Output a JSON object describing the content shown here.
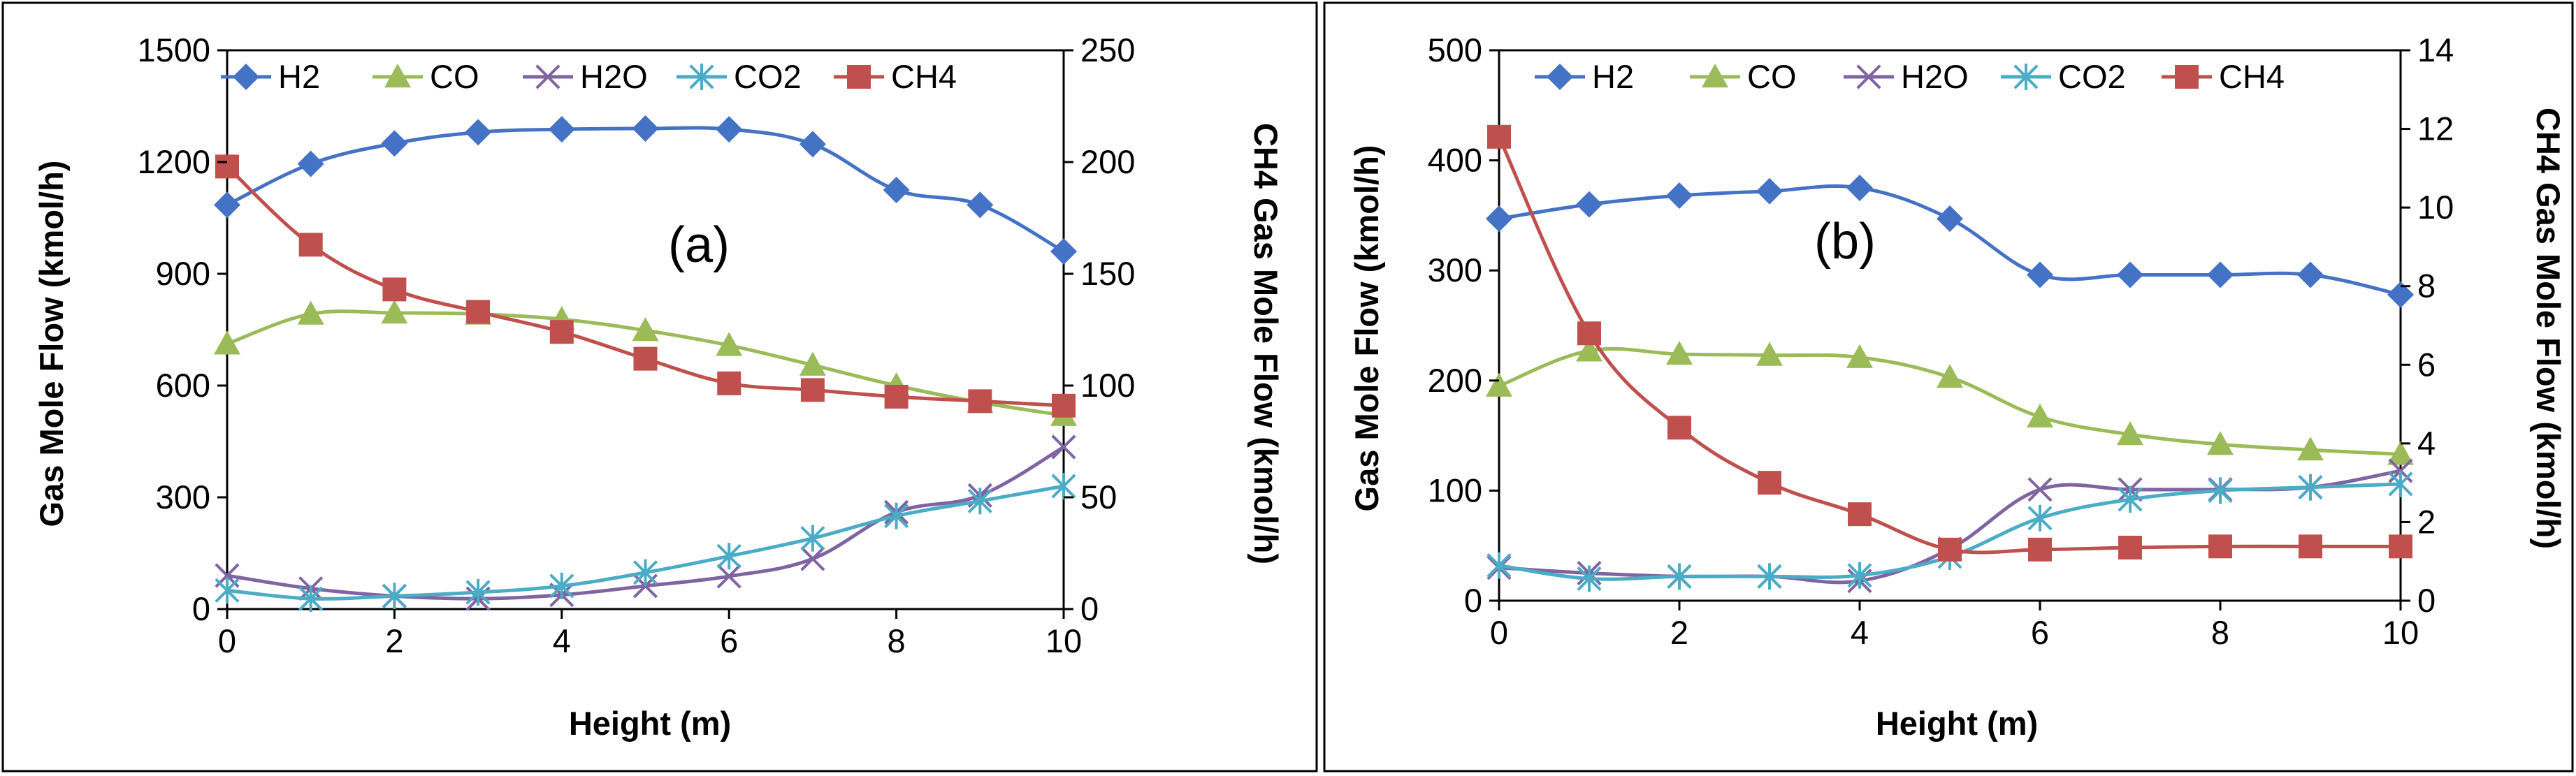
{
  "chart_data": [
    {
      "type": "line",
      "annotation": "(a)",
      "xlabel": "Height (m)",
      "ylabel": "Gas Mole Flow (kmol/h)",
      "y2label": "CH4 Gas Mole Flow (kmol/h)",
      "xlim": [
        0,
        10
      ],
      "ylim": [
        0,
        1500
      ],
      "y2lim": [
        0,
        250
      ],
      "xticks": [
        "0",
        "2",
        "4",
        "6",
        "8",
        "10"
      ],
      "yticks": [
        "0",
        "300",
        "600",
        "900",
        "1200",
        "1500"
      ],
      "y2ticks": [
        "0",
        "50",
        "100",
        "150",
        "200",
        "250"
      ],
      "x": [
        0,
        1,
        2,
        3,
        4,
        5,
        6,
        7,
        8,
        9,
        10
      ],
      "legend_position": "top",
      "series": [
        {
          "name": "H2",
          "axis": "left",
          "marker": "diamond",
          "color": "#4472C4",
          "values": [
            1085,
            1195,
            1250,
            1280,
            1288,
            1290,
            1288,
            1248,
            1125,
            1085,
            960
          ]
        },
        {
          "name": "CO",
          "axis": "left",
          "marker": "triangle",
          "color": "#9BBB59",
          "values": [
            712,
            792,
            795,
            792,
            778,
            748,
            708,
            655,
            600,
            555,
            520
          ]
        },
        {
          "name": "H2O",
          "axis": "left",
          "marker": "x",
          "color": "#8064A2",
          "values": [
            90,
            55,
            35,
            28,
            38,
            62,
            88,
            135,
            260,
            305,
            435
          ]
        },
        {
          "name": "CO2",
          "axis": "left",
          "marker": "asterisk",
          "color": "#4BACC6",
          "values": [
            50,
            28,
            35,
            45,
            62,
            98,
            142,
            190,
            250,
            290,
            330
          ]
        },
        {
          "name": "CH4",
          "axis": "right",
          "marker": "square",
          "color": "#C0504D",
          "values": [
            198,
            163,
            143,
            133,
            124,
            112,
            101,
            98,
            95,
            93,
            91
          ]
        }
      ]
    },
    {
      "type": "line",
      "annotation": "(b)",
      "xlabel": "Height (m)",
      "ylabel": "Gas Mole Flow (kmol/h)",
      "y2label": "CH4 Gas Mole Flow (kmol/h)",
      "xlim": [
        0,
        10
      ],
      "ylim": [
        0,
        500
      ],
      "y2lim": [
        0,
        14
      ],
      "xticks": [
        "0",
        "2",
        "4",
        "6",
        "8",
        "10"
      ],
      "yticks": [
        "0",
        "100",
        "200",
        "300",
        "400",
        "500"
      ],
      "y2ticks": [
        "0",
        "2",
        "4",
        "6",
        "8",
        "10",
        "12",
        "14"
      ],
      "x": [
        0,
        1,
        2,
        3,
        4,
        5,
        6,
        7,
        8,
        9,
        10
      ],
      "legend_position": "top",
      "series": [
        {
          "name": "H2",
          "axis": "left",
          "marker": "diamond",
          "color": "#4472C4",
          "values": [
            347,
            360,
            368,
            372,
            375,
            347,
            296,
            296,
            296,
            296,
            278
          ]
        },
        {
          "name": "CO",
          "axis": "left",
          "marker": "triangle",
          "color": "#9BBB59",
          "values": [
            195,
            227,
            224,
            223,
            221,
            203,
            167,
            151,
            142,
            137,
            133
          ]
        },
        {
          "name": "H2O",
          "axis": "left",
          "marker": "x",
          "color": "#8064A2",
          "values": [
            30,
            25,
            22,
            22,
            18,
            47,
            101,
            101,
            101,
            103,
            118
          ]
        },
        {
          "name": "CO2",
          "axis": "left",
          "marker": "asterisk",
          "color": "#4BACC6",
          "values": [
            32,
            20,
            22,
            22,
            23,
            40,
            75,
            92,
            100,
            103,
            106
          ]
        },
        {
          "name": "CH4",
          "axis": "right",
          "marker": "square",
          "color": "#C0504D",
          "values": [
            11.8,
            6.8,
            4.4,
            3.0,
            2.2,
            1.3,
            1.3,
            1.35,
            1.38,
            1.38,
            1.38
          ]
        }
      ]
    }
  ]
}
